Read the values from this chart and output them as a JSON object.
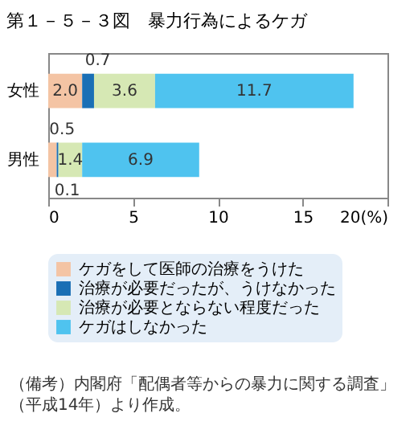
{
  "chart_data": {
    "type": "bar",
    "orientation": "horizontal",
    "stacked": true,
    "title": "第１－５－３図　暴力行為によるケガ",
    "categories": [
      "女性",
      "男性"
    ],
    "series": [
      {
        "name": "ケガをして医師の治療をうけた",
        "color": "#f4c4a4",
        "values": [
          2.0,
          0.5
        ],
        "value_labels": [
          "2.0",
          "0.5"
        ]
      },
      {
        "name": "治療が必要だったが、うけなかった",
        "color": "#1a6fb5",
        "values": [
          0.7,
          0.1
        ],
        "value_labels": [
          "0.7",
          "0.1"
        ]
      },
      {
        "name": "治療が必要とならない程度だった",
        "color": "#d6e8b4",
        "values": [
          3.6,
          1.4
        ],
        "value_labels": [
          "3.6",
          "1.4"
        ]
      },
      {
        "name": "ケガはしなかった",
        "color": "#4fc3ef",
        "values": [
          11.7,
          6.9
        ],
        "value_labels": [
          "11.7",
          "6.9"
        ]
      }
    ],
    "xlim": [
      0,
      20
    ],
    "xticks": [
      0,
      5,
      10,
      15,
      {
        "value": 20,
        "label": "20(%)"
      }
    ],
    "grid": false,
    "legend": "bottom",
    "annotations": [
      "（備考）内閣府「配偶者等からの暴力に関する調査」（平成14年）より作成。"
    ]
  }
}
